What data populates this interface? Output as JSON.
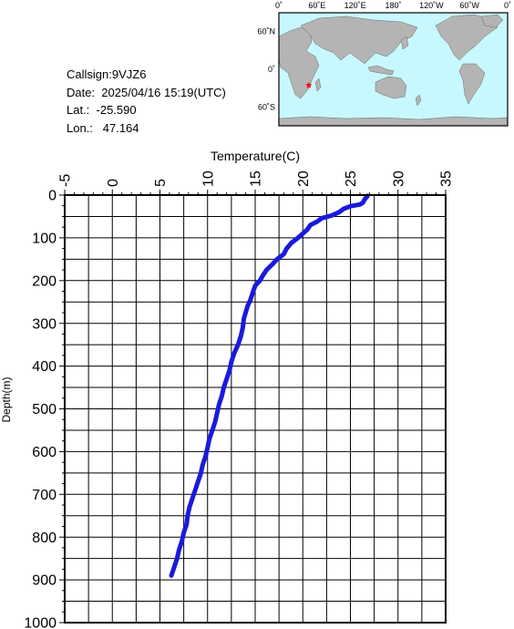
{
  "station": {
    "callsign": "Callsign:9VJZ6",
    "date": "Date:  2025/04/16 15:19(UTC)",
    "lat": "Lat.:  -25.590",
    "lon": "Lon.:   47.164"
  },
  "map": {
    "lon_labels": [
      "0˚",
      "60˚E",
      "120˚E",
      "180˚",
      "120˚W",
      "60˚W",
      "0˚"
    ],
    "lat_labels": [
      "60˚N",
      "0˚",
      "60˚S"
    ],
    "marker": {
      "lat": -25.59,
      "lon": 47.164,
      "color": "#ff0000"
    },
    "ocean_color": "#c8f8ff",
    "land_color": "#b4b4b4"
  },
  "chart_data": {
    "type": "line",
    "xlabel": "Temperature(C)",
    "ylabel": "Depth(m)",
    "xlim": [
      -5,
      35
    ],
    "ylim": [
      0,
      1000
    ],
    "y_inverted": true,
    "x_axis_position": "top",
    "x_ticks": [
      "-5",
      "0",
      "5",
      "10",
      "15",
      "20",
      "25",
      "30",
      "35"
    ],
    "y_ticks": [
      "0",
      "100",
      "200",
      "300",
      "400",
      "500",
      "600",
      "700",
      "800",
      "900",
      "1000"
    ],
    "grid": true,
    "series": [
      {
        "color": "#1a1adc",
        "points": [
          [
            26.8,
            2
          ],
          [
            26.5,
            10
          ],
          [
            26.3,
            18
          ],
          [
            26.0,
            22
          ],
          [
            25.0,
            26
          ],
          [
            24.3,
            32
          ],
          [
            23.8,
            40
          ],
          [
            23.0,
            48
          ],
          [
            22.0,
            54
          ],
          [
            21.5,
            62
          ],
          [
            20.8,
            70
          ],
          [
            20.5,
            80
          ],
          [
            20.0,
            90
          ],
          [
            19.5,
            100
          ],
          [
            18.8,
            112
          ],
          [
            18.3,
            125
          ],
          [
            18.0,
            138
          ],
          [
            17.3,
            150
          ],
          [
            16.8,
            162
          ],
          [
            16.2,
            175
          ],
          [
            15.8,
            188
          ],
          [
            15.5,
            200
          ],
          [
            15.0,
            212
          ],
          [
            14.8,
            225
          ],
          [
            14.5,
            245
          ],
          [
            14.2,
            260
          ],
          [
            14.0,
            275
          ],
          [
            13.8,
            290
          ],
          [
            13.7,
            310
          ],
          [
            13.5,
            330
          ],
          [
            13.2,
            350
          ],
          [
            12.8,
            370
          ],
          [
            12.5,
            390
          ],
          [
            12.3,
            410
          ],
          [
            12.0,
            430
          ],
          [
            11.7,
            450
          ],
          [
            11.5,
            470
          ],
          [
            11.2,
            490
          ],
          [
            11.0,
            510
          ],
          [
            10.8,
            530
          ],
          [
            10.5,
            550
          ],
          [
            10.2,
            570
          ],
          [
            10.0,
            590
          ],
          [
            9.8,
            610
          ],
          [
            9.5,
            630
          ],
          [
            9.3,
            650
          ],
          [
            9.0,
            670
          ],
          [
            8.7,
            690
          ],
          [
            8.4,
            710
          ],
          [
            8.1,
            730
          ],
          [
            7.9,
            750
          ],
          [
            7.8,
            770
          ],
          [
            7.5,
            790
          ],
          [
            7.3,
            810
          ],
          [
            7.0,
            830
          ],
          [
            6.8,
            850
          ],
          [
            6.5,
            870
          ],
          [
            6.2,
            890
          ]
        ]
      }
    ]
  }
}
